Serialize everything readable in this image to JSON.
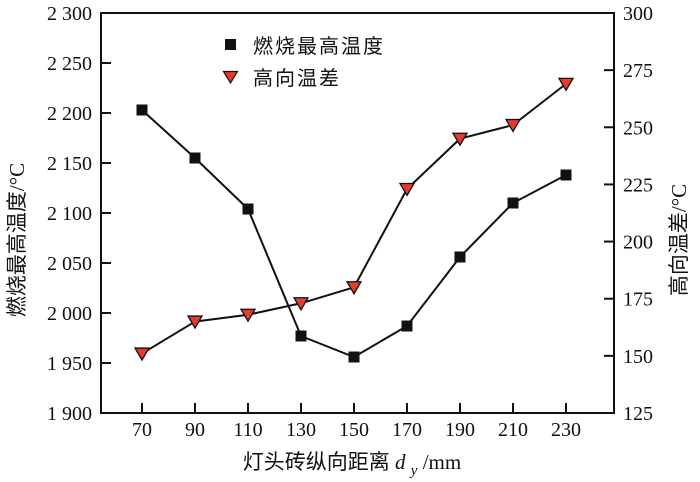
{
  "chart_data": {
    "type": "line",
    "title": "",
    "x": [
      70,
      90,
      110,
      130,
      150,
      170,
      190,
      210,
      230
    ],
    "xlabel_prefix": "灯头砖纵向距离 ",
    "xlabel_var": "d",
    "xlabel_sub": "y",
    "xlabel_suffix": "/mm",
    "left_axis": {
      "label": "燃烧最高温度/°C",
      "min": 1900,
      "max": 2300,
      "ticks": [
        {
          "v": 1900,
          "label": "1 900"
        },
        {
          "v": 1950,
          "label": "1 950"
        },
        {
          "v": 2000,
          "label": "2 000"
        },
        {
          "v": 2050,
          "label": "2 050"
        },
        {
          "v": 2100,
          "label": "2 100"
        },
        {
          "v": 2150,
          "label": "2 150"
        },
        {
          "v": 2200,
          "label": "2 200"
        },
        {
          "v": 2250,
          "label": "2 250"
        },
        {
          "v": 2300,
          "label": "2 300"
        }
      ]
    },
    "right_axis": {
      "label": "高向温差/°C",
      "min": 125,
      "max": 300,
      "ticks": [
        {
          "v": 125,
          "label": "125"
        },
        {
          "v": 150,
          "label": "150"
        },
        {
          "v": 175,
          "label": "175"
        },
        {
          "v": 200,
          "label": "200"
        },
        {
          "v": 225,
          "label": "225"
        },
        {
          "v": 250,
          "label": "250"
        },
        {
          "v": 275,
          "label": "275"
        },
        {
          "v": 300,
          "label": "300"
        }
      ]
    },
    "series": [
      {
        "name": "燃烧最高温度",
        "axis": "left",
        "marker": "square",
        "color": "#111111",
        "line_color": "#111111",
        "values": [
          2203,
          2155,
          2104,
          1977,
          1956,
          1987,
          2056,
          2110,
          2138
        ]
      },
      {
        "name": "高向温差",
        "axis": "right",
        "marker": "triangle-down",
        "color": "#e8392f",
        "line_color": "#111111",
        "values": [
          151,
          165,
          168,
          173,
          180,
          223,
          245,
          251,
          269
        ]
      }
    ],
    "grid": false,
    "legend_position": "inside top-center",
    "frame_color": "#111111",
    "background_color": "#ffffff"
  }
}
